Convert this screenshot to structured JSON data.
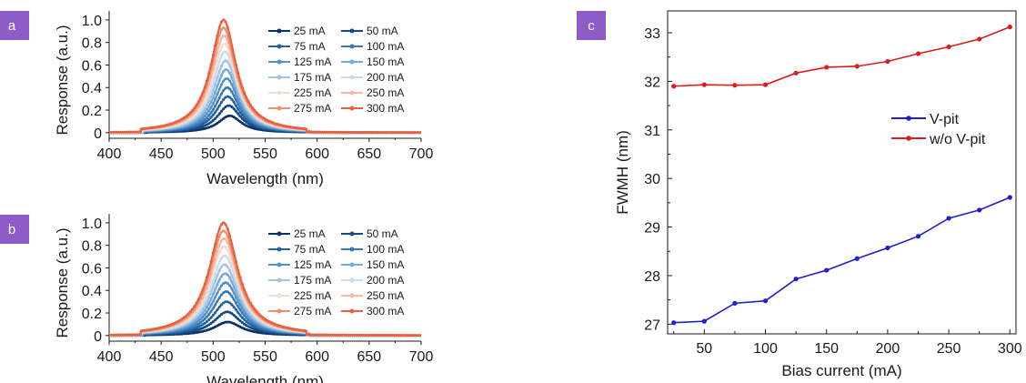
{
  "colors": {
    "badge": "#8e5cc6",
    "axis": "#1a1a1a",
    "vpit": "#1f1fd0",
    "wovpit": "#d81e1e",
    "spectral_cmap": [
      "#08306b",
      "#1d5c9c",
      "#3b82be",
      "#6ea6d4",
      "#a7c9e6",
      "#d7e6f4",
      "#f7e2da",
      "#f6b7a0",
      "#f08f72",
      "#e8613f"
    ]
  },
  "chart_data": [
    {
      "panel": "a",
      "type": "line",
      "xlabel": "Wavelength (nm)",
      "ylabel": "Response (a.u.)",
      "xlim": [
        400,
        700
      ],
      "ylim": [
        -0.05,
        1.08
      ],
      "xticks": [
        400,
        450,
        500,
        550,
        600,
        650,
        700
      ],
      "yticks": [
        0,
        0.2,
        0.4,
        0.6,
        0.8,
        1.0
      ],
      "ytick_labels": [
        "0",
        "0.2",
        "0.4",
        "0.6",
        "0.8",
        "1.0"
      ],
      "legend_position": "top-right, two columns",
      "peak_wavelengths": [
        516,
        515,
        514,
        513.5,
        513,
        512.5,
        512,
        511.5,
        511,
        510.5,
        510,
        510
      ],
      "fwhm_nm": [
        27.0,
        27.1,
        27.4,
        27.5,
        27.9,
        28.1,
        28.3,
        28.6,
        28.8,
        29.2,
        29.4,
        29.6
      ],
      "series": [
        {
          "name": "25 mA",
          "color": "#08306b",
          "peak": 0.15
        },
        {
          "name": "50 mA",
          "color": "#154a85",
          "peak": 0.24
        },
        {
          "name": "75 mA",
          "color": "#24629f",
          "peak": 0.32
        },
        {
          "name": "100 mA",
          "color": "#3979b5",
          "peak": 0.4
        },
        {
          "name": "125 mA",
          "color": "#5592c7",
          "peak": 0.48
        },
        {
          "name": "150 mA",
          "color": "#77aad6",
          "peak": 0.56
        },
        {
          "name": "175 mA",
          "color": "#a2c4e3",
          "peak": 0.64
        },
        {
          "name": "200 mA",
          "color": "#cadcee",
          "peak": 0.72
        },
        {
          "name": "225 mA",
          "color": "#f4dcd2",
          "peak": 0.79
        },
        {
          "name": "250 mA",
          "color": "#f5b9a3",
          "peak": 0.86
        },
        {
          "name": "275 mA",
          "color": "#f0906f",
          "peak": 0.93
        },
        {
          "name": "300 mA",
          "color": "#e8613f",
          "peak": 1.0
        }
      ]
    },
    {
      "panel": "b",
      "type": "line",
      "xlabel": "Wavelength (nm)",
      "ylabel": "Response (a.u.)",
      "xlim": [
        400,
        700
      ],
      "ylim": [
        -0.05,
        1.08
      ],
      "xticks": [
        400,
        450,
        500,
        550,
        600,
        650,
        700
      ],
      "yticks": [
        0,
        0.2,
        0.4,
        0.6,
        0.8,
        1.0
      ],
      "ytick_labels": [
        "0",
        "0.2",
        "0.4",
        "0.6",
        "0.8",
        "1.0"
      ],
      "legend_position": "top-right, two columns",
      "peak_wavelengths": [
        514,
        513.5,
        513,
        512.5,
        512,
        511.5,
        511,
        511,
        510.5,
        510.5,
        510,
        510
      ],
      "fwhm_nm": [
        31.9,
        31.9,
        31.9,
        31.9,
        32.2,
        32.3,
        32.3,
        32.4,
        32.6,
        32.7,
        32.9,
        33.1
      ],
      "series": [
        {
          "name": "25 mA",
          "color": "#08306b",
          "peak": 0.12
        },
        {
          "name": "50 mA",
          "color": "#154a85",
          "peak": 0.21
        },
        {
          "name": "75 mA",
          "color": "#24629f",
          "peak": 0.3
        },
        {
          "name": "100 mA",
          "color": "#3979b5",
          "peak": 0.39
        },
        {
          "name": "125 mA",
          "color": "#5592c7",
          "peak": 0.47
        },
        {
          "name": "150 mA",
          "color": "#77aad6",
          "peak": 0.55
        },
        {
          "name": "175 mA",
          "color": "#a2c4e3",
          "peak": 0.63
        },
        {
          "name": "200 mA",
          "color": "#cadcee",
          "peak": 0.71
        },
        {
          "name": "225 mA",
          "color": "#f4dcd2",
          "peak": 0.79
        },
        {
          "name": "250 mA",
          "color": "#f5b9a3",
          "peak": 0.86
        },
        {
          "name": "275 mA",
          "color": "#f0906f",
          "peak": 0.93
        },
        {
          "name": "300 mA",
          "color": "#e8613f",
          "peak": 1.0
        }
      ]
    },
    {
      "panel": "c",
      "type": "line",
      "xlabel": "Bias current (mA)",
      "ylabel": "FWMH (nm)",
      "xlim": [
        20,
        305
      ],
      "ylim": [
        26.8,
        33.45
      ],
      "xticks": [
        50,
        100,
        150,
        200,
        250,
        300
      ],
      "yticks": [
        27,
        28,
        29,
        30,
        31,
        32,
        33
      ],
      "legend_position": "center-right",
      "x": [
        25,
        50,
        75,
        100,
        125,
        150,
        175,
        200,
        225,
        250,
        275,
        300
      ],
      "series": [
        {
          "name": "V-pit",
          "color": "#1f1fd0",
          "values": [
            27.03,
            27.06,
            27.43,
            27.48,
            27.93,
            28.11,
            28.35,
            28.57,
            28.81,
            29.18,
            29.35,
            29.61
          ]
        },
        {
          "name": "w/o V-pit",
          "color": "#d81e1e",
          "values": [
            31.9,
            31.93,
            31.92,
            31.93,
            32.17,
            32.29,
            32.31,
            32.41,
            32.57,
            32.71,
            32.87,
            33.12
          ]
        }
      ]
    }
  ]
}
